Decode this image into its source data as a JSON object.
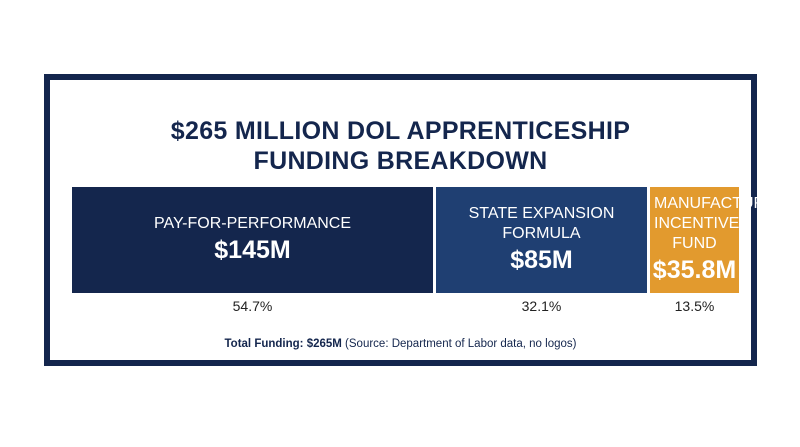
{
  "title_lines": [
    "$265 MILLION DOL APPRENTICESHIP",
    "FUNDING BREAKDOWN"
  ],
  "chart_data": {
    "type": "bar",
    "orientation": "stacked-horizontal",
    "title": "$265 MILLION DOL APPRENTICESHIP FUNDING BREAKDOWN",
    "total": 265,
    "unit": "$M",
    "series": [
      {
        "name": "PAY-FOR-PERFORMANCE",
        "value": 145,
        "value_label": "$145M",
        "percent_label": "54.7%",
        "color": "#14264d"
      },
      {
        "name": "STATE EXPANSION FORMULA",
        "value": 85,
        "value_label": "$85M",
        "percent_label": "32.1%",
        "color": "#1f3f72"
      },
      {
        "name": "MANUFACTURING INCENTIVE FUND",
        "value": 35.8,
        "value_label": "$35.8M",
        "percent_label": "13.5%",
        "color": "#e29a2e"
      }
    ]
  },
  "footer": {
    "bold": "Total Funding: $265M",
    "rest": " (Source: Department of Labor data, no logos)"
  },
  "colors": {
    "frame": "#14264d",
    "title": "#14264d",
    "segment_gap": "#ffffff"
  }
}
